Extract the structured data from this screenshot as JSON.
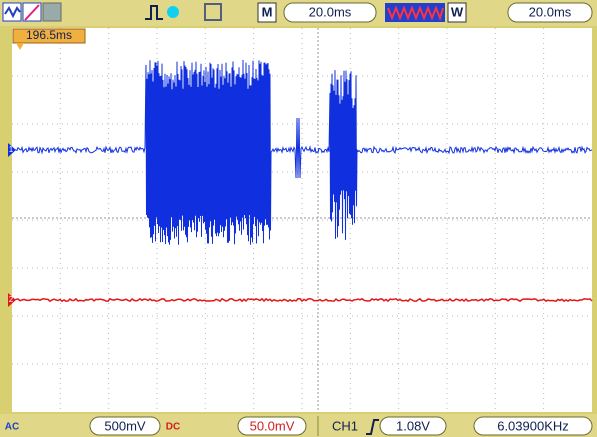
{
  "top_bar": {
    "timebase_label": "M",
    "timebase": "20.0ms",
    "window_label": "W",
    "window_timebase": "20.0ms"
  },
  "trigger_time": "196.5ms",
  "channel_markers": [
    "1",
    "2"
  ],
  "bottom_bar": {
    "ch1_coupling": "AC",
    "ch1_scale": "500mV",
    "ch2_coupling": "DC",
    "ch2_scale": "50.0mV",
    "trigger_source": "CH1",
    "trigger_level": "1.08V",
    "frequency": "6.03900KHz"
  }
}
